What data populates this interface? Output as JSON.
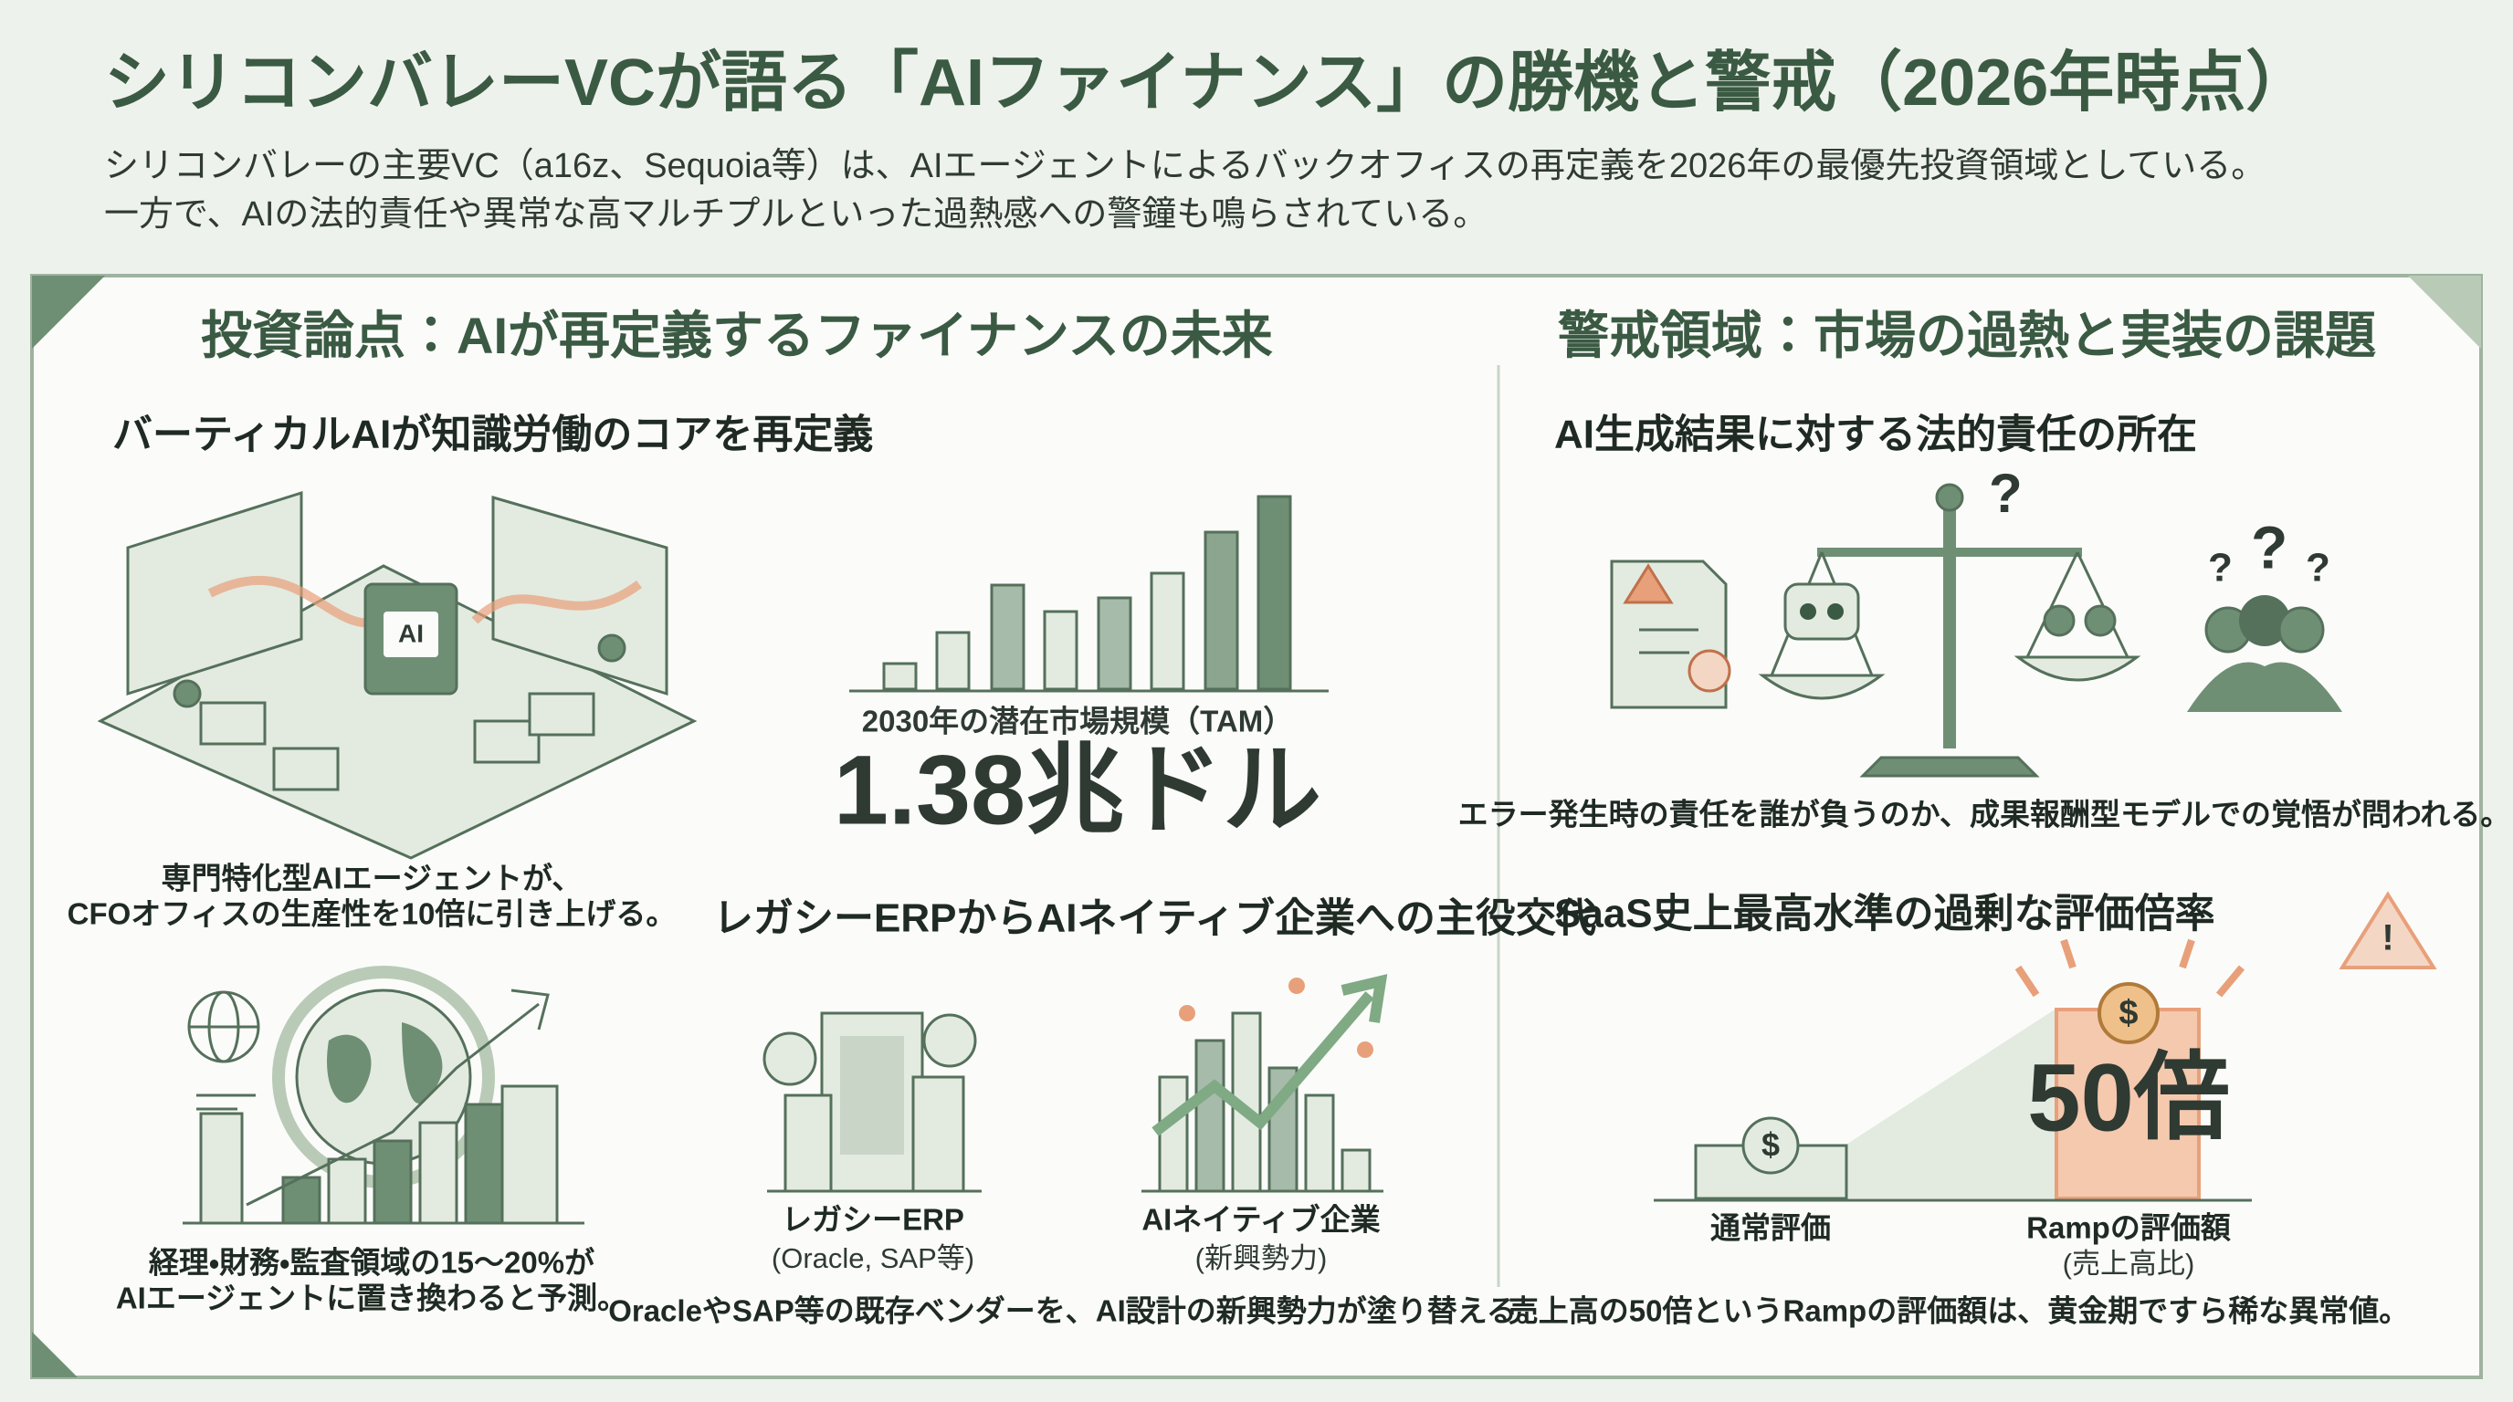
{
  "header": {
    "title": "シリコンバレーVCが語る「AIファイナンス」の勝機と警戒（2026年時点）",
    "subtitle": [
      "シリコンバレーの主要VC（a16z、Sequoia等）は、AIエージェントによるバックオフィスの再定義を2026年の最優先投資領域としている。",
      "一方で、AIの法的責任や異常な高マルチプルといった過熱感への警鐘も鳴らされている。"
    ]
  },
  "icons": {
    "chip": "AI",
    "coin": "$",
    "question": "?"
  },
  "left": {
    "heading": "投資論点：AIが再定義するファイナンスの未来",
    "vertical": {
      "heading": "バーティカルAIが知識労働のコアを再定義",
      "caption": [
        "専門特化型AIエージェントが、",
        "CFOオフィスの生産性を10倍に引き上げる。"
      ]
    },
    "tam": {
      "label": "2030年の潜在市場規模（TAM）",
      "value": "1.38兆ドル"
    },
    "replace": {
      "caption": [
        "経理・財務・監査領域の15～20%が",
        "AIエージェントに置き換わると予測。"
      ]
    },
    "shift": {
      "heading": "レガシーERPからAIネイティブ企業への主役交代",
      "legacy": [
        "レガシーERP",
        "(Oracle, SAP等)"
      ],
      "native": [
        "AIネイティブ企業",
        "(新興勢力)"
      ],
      "caption": "OracleやSAP等の既存ベンダーを、AI設計の新興勢力が塗り替える。"
    }
  },
  "right": {
    "heading": "警戒領域：市場の過熱と実装の課題",
    "liability": {
      "heading": "AI生成結果に対する法的責任の所在",
      "caption": "エラー発生時の責任を誰が負うのか、成果報酬型モデルでの覚悟が問われる。"
    },
    "valuation": {
      "heading": "SaaS史上最高水準の過剰な評価倍率",
      "multiple": "50倍",
      "normal": "通常評価",
      "ramp": [
        "Rampの評価額",
        "(売上高比)"
      ],
      "caption": "売上高の50倍というRampの評価額は、黄金期ですら稀な異常値。"
    }
  }
}
